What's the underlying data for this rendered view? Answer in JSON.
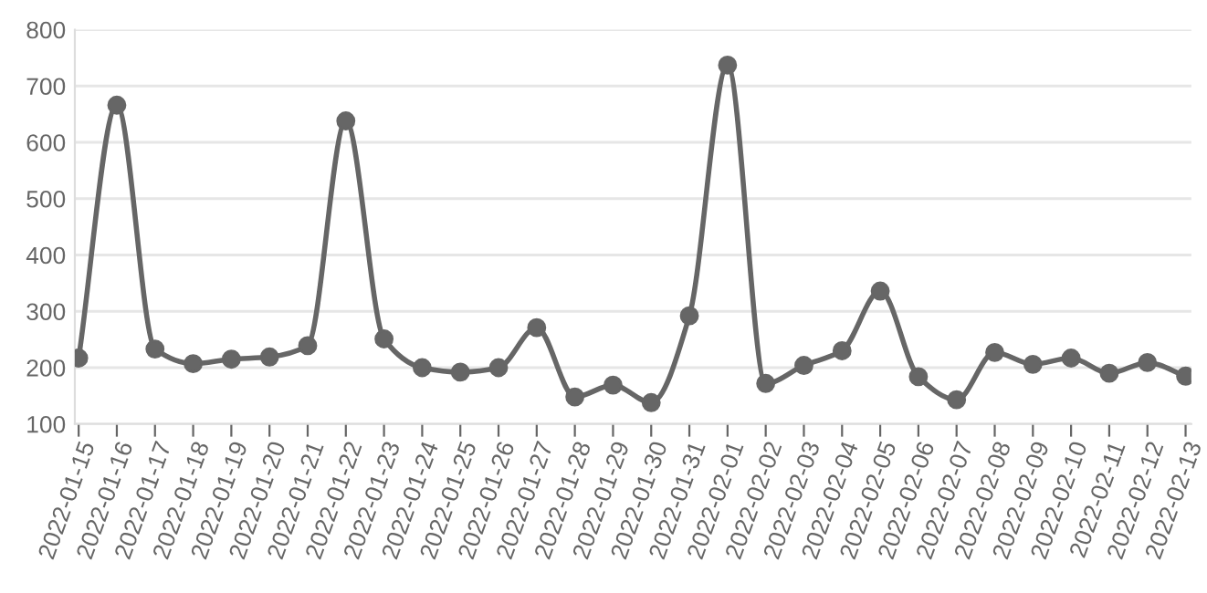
{
  "chart_data": {
    "type": "line",
    "categories": [
      "2022-01-15",
      "2022-01-16",
      "2022-01-17",
      "2022-01-18",
      "2022-01-19",
      "2022-01-20",
      "2022-01-21",
      "2022-01-22",
      "2022-01-23",
      "2022-01-24",
      "2022-01-25",
      "2022-01-26",
      "2022-01-27",
      "2022-01-28",
      "2022-01-29",
      "2022-01-30",
      "2022-01-31",
      "2022-02-01",
      "2022-02-02",
      "2022-02-03",
      "2022-02-04",
      "2022-02-05",
      "2022-02-06",
      "2022-02-07",
      "2022-02-08",
      "2022-02-09",
      "2022-02-10",
      "2022-02-11",
      "2022-02-12",
      "2022-02-13"
    ],
    "series": [
      {
        "color": "#666666",
        "values": [
          217,
          666,
          233,
          207,
          215,
          219,
          239,
          638,
          251,
          200,
          192,
          200,
          271,
          148,
          169,
          138,
          292,
          737,
          172,
          204,
          230,
          336,
          184,
          143,
          227,
          206,
          217,
          190,
          209,
          185
        ]
      }
    ],
    "ylim": [
      100,
      800
    ],
    "yticks": [
      100,
      200,
      300,
      400,
      500,
      600,
      700,
      800
    ],
    "grid": "y",
    "marker": "circle",
    "line_style": "solid"
  }
}
